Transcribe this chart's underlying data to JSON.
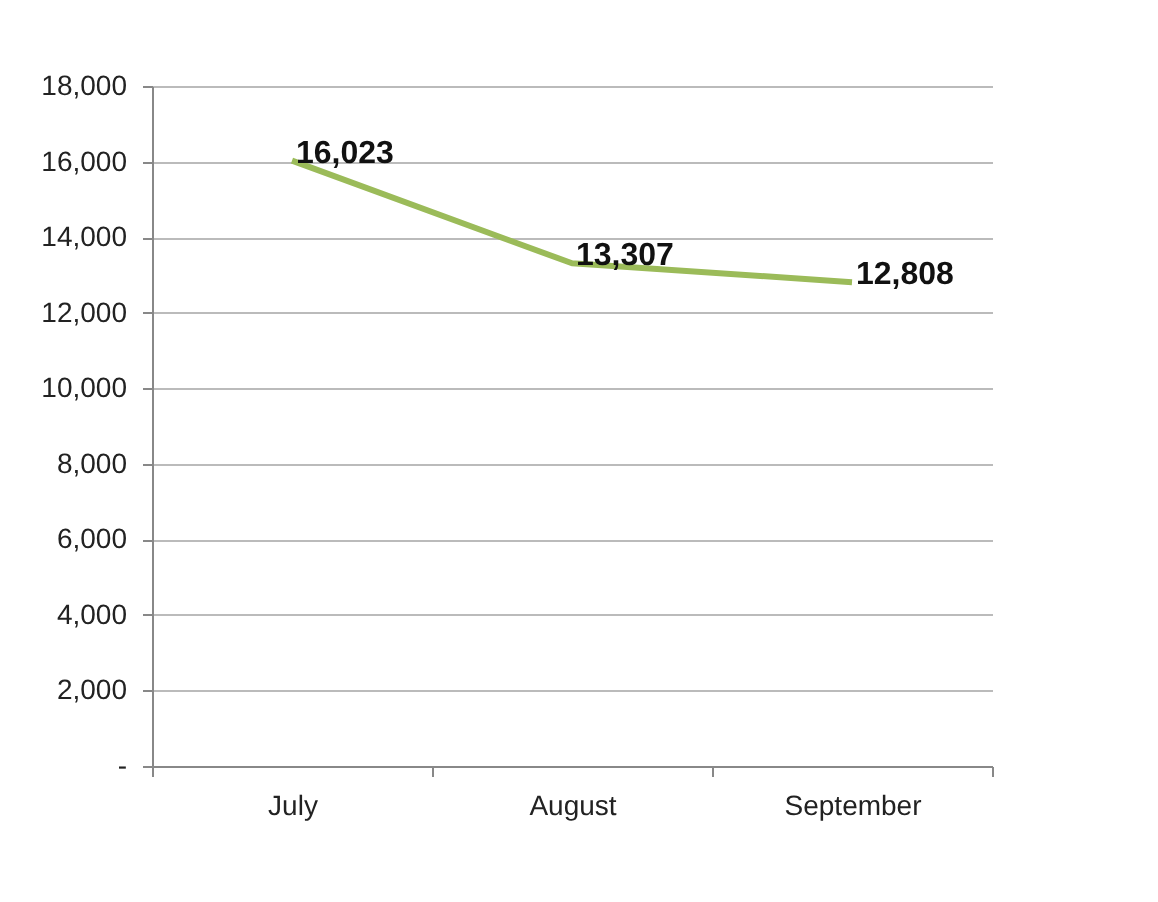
{
  "chart_data": {
    "type": "line",
    "categories": [
      "July",
      "August",
      "September"
    ],
    "series": [
      {
        "color": "#9bbb59",
        "values": [
          16023,
          13307,
          12808
        ],
        "value_labels": [
          "16,023",
          "13,307",
          "12,808"
        ]
      }
    ],
    "ylim": [
      0,
      18000
    ],
    "yticks": [
      {
        "value": 0,
        "label": "-"
      },
      {
        "value": 2000,
        "label": "2,000"
      },
      {
        "value": 4000,
        "label": "4,000"
      },
      {
        "value": 6000,
        "label": "6,000"
      },
      {
        "value": 8000,
        "label": "8,000"
      },
      {
        "value": 10000,
        "label": "10,000"
      },
      {
        "value": 12000,
        "label": "12,000"
      },
      {
        "value": 14000,
        "label": "14,000"
      },
      {
        "value": 16000,
        "label": "16,000"
      },
      {
        "value": 18000,
        "label": "18,000"
      }
    ],
    "grid": "y",
    "marker": "none",
    "line_style": "solid"
  }
}
